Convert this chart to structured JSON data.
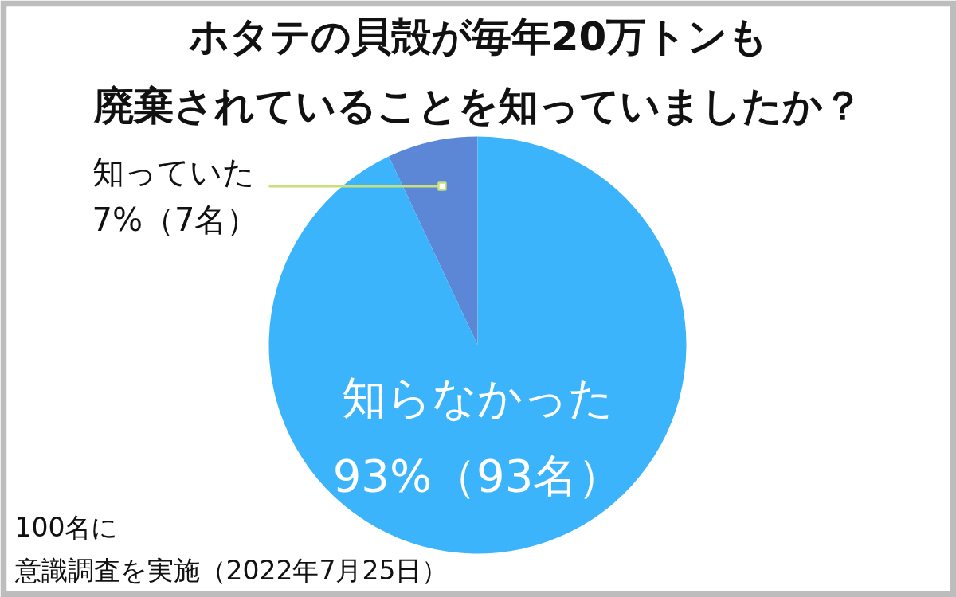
{
  "chart_data": {
    "type": "pie",
    "title": "ホタテの貝殻が毎年20万トンも廃棄されていることを知っていましたか？",
    "categories": [
      "知っていた",
      "知らなかった"
    ],
    "values": [
      7,
      93
    ],
    "colors": [
      "#5b87d6",
      "#3cb4fc"
    ],
    "value_labels": [
      "7%（7名）",
      "93%（93名）"
    ],
    "annotations": [
      "100名に意識調査を実施（2022年7月25日）"
    ]
  }
}
